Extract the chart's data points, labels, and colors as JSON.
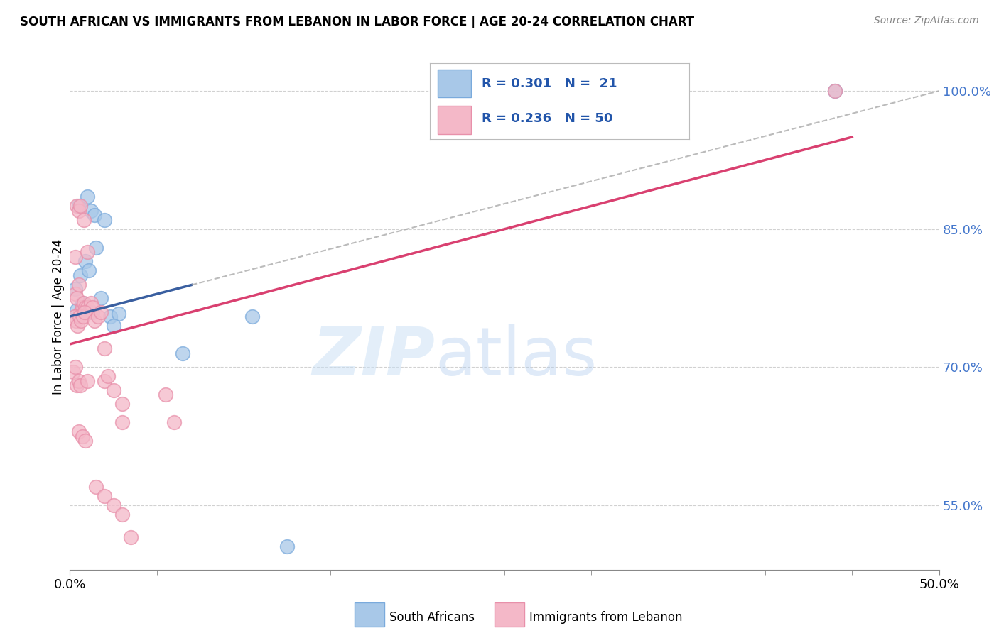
{
  "title": "SOUTH AFRICAN VS IMMIGRANTS FROM LEBANON IN LABOR FORCE | AGE 20-24 CORRELATION CHART",
  "source": "Source: ZipAtlas.com",
  "ylabel": "In Labor Force | Age 20-24",
  "xlim": [
    0.0,
    50.0
  ],
  "ylim": [
    48.0,
    103.0
  ],
  "ytick_positions": [
    55.0,
    70.0,
    85.0,
    100.0
  ],
  "ytick_labels": [
    "55.0%",
    "70.0%",
    "85.0%",
    "100.0%"
  ],
  "blue_color": "#a8c8e8",
  "blue_edge_color": "#7aaadc",
  "pink_color": "#f4b8c8",
  "pink_edge_color": "#e890aa",
  "blue_line_color": "#3a5fa0",
  "pink_line_color": "#d94070",
  "dashed_line_color": "#aaaaaa",
  "watermark_zip": "ZIP",
  "watermark_atlas": "atlas",
  "legend_blue_label": "R = 0.301   N =  21",
  "legend_pink_label": "R = 0.236   N = 50",
  "legend_text_color": "#2255aa",
  "blue_scatter_x": [
    0.5,
    1.0,
    1.2,
    1.4,
    1.5,
    2.0,
    2.3,
    0.3,
    0.6,
    0.9,
    1.1,
    1.8,
    2.8,
    0.4,
    0.7,
    1.3,
    2.5,
    6.5,
    10.5,
    12.5,
    44.0
  ],
  "blue_scatter_y": [
    87.5,
    88.5,
    87.0,
    86.5,
    83.0,
    86.0,
    75.5,
    78.5,
    80.0,
    81.5,
    80.5,
    77.5,
    75.8,
    76.2,
    77.0,
    76.0,
    74.5,
    71.5,
    75.5,
    50.5,
    100.0
  ],
  "pink_scatter_x": [
    0.3,
    0.4,
    0.5,
    0.6,
    0.7,
    0.8,
    0.9,
    1.0,
    1.1,
    1.2,
    1.3,
    0.25,
    0.35,
    0.45,
    0.55,
    0.65,
    0.75,
    0.85,
    1.4,
    1.6,
    1.8,
    2.0,
    2.2,
    2.5,
    3.0,
    3.5,
    0.2,
    0.3,
    0.4,
    0.5,
    0.6,
    1.0,
    1.5,
    2.0,
    2.5,
    3.0,
    0.3,
    0.4,
    0.5,
    0.6,
    0.8,
    1.0,
    2.0,
    3.0,
    5.5,
    6.0,
    0.5,
    0.7,
    0.9,
    44.0
  ],
  "pink_scatter_y": [
    78.0,
    77.5,
    79.0,
    76.0,
    76.5,
    77.0,
    76.5,
    76.5,
    76.0,
    77.0,
    76.5,
    75.5,
    75.0,
    74.5,
    75.5,
    75.0,
    75.5,
    76.0,
    75.0,
    75.5,
    76.0,
    68.5,
    69.0,
    67.5,
    64.0,
    51.5,
    69.5,
    70.0,
    68.0,
    68.5,
    68.0,
    68.5,
    57.0,
    56.0,
    55.0,
    54.0,
    82.0,
    87.5,
    87.0,
    87.5,
    86.0,
    82.5,
    72.0,
    66.0,
    67.0,
    64.0,
    63.0,
    62.5,
    62.0,
    100.0
  ],
  "blue_line_x0": 0.0,
  "blue_line_x1": 50.0,
  "blue_line_y0": 75.5,
  "blue_line_y1": 100.0,
  "blue_solid_x_end": 7.0,
  "pink_line_x0": 0.0,
  "pink_line_x1": 50.0,
  "pink_line_y0": 72.5,
  "pink_line_y1": 97.5,
  "pink_solid_x_end": 45.0,
  "xtick_left_label": "0.0%",
  "xtick_right_label": "50.0%",
  "bottom_legend_blue_label": "South Africans",
  "bottom_legend_pink_label": "Immigrants from Lebanon"
}
